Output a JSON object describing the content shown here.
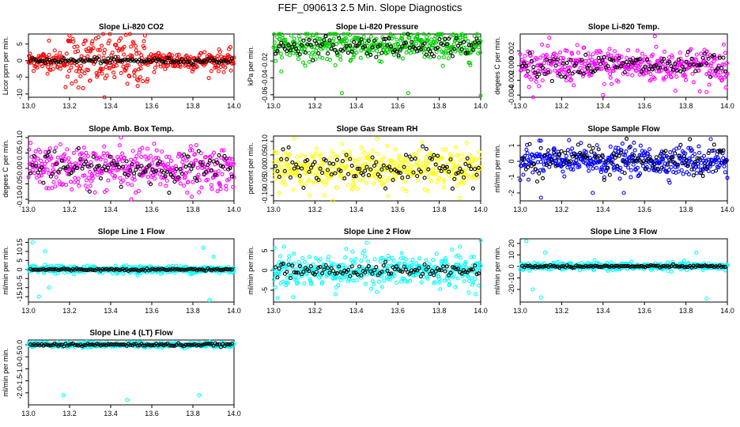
{
  "figure_title": "FEF_090613  2.5 Min. Slope Diagnostics",
  "chart_data": [
    {
      "type": "scatter",
      "title": "Slope Li-820 CO2",
      "ylabel": "Licor ppm per min.",
      "color": "#ff0000",
      "xlim": [
        13.0,
        14.0
      ],
      "ylim": [
        -11,
        8
      ],
      "yticks": [
        -10,
        -5,
        0,
        5
      ],
      "ytick_labels": [
        "-10",
        "-5",
        "0",
        "5"
      ],
      "xticks": [
        13.0,
        13.2,
        13.4,
        13.6,
        13.8,
        14.0
      ],
      "xtick_labels": [
        "13.0",
        "13.2",
        "13.4",
        "13.6",
        "13.8",
        "14.0"
      ],
      "color_spread": 2.5,
      "black_spread": 0.4,
      "center": 0.0,
      "outliers": [
        [
          13.1,
          6
        ],
        [
          13.2,
          7.5
        ],
        [
          13.37,
          -11
        ],
        [
          13.3,
          -6
        ]
      ]
    },
    {
      "type": "scatter",
      "title": "Slope Li-820 Pressure",
      "ylabel": "kPa per min.",
      "color": "#00cc00",
      "xlim": [
        13.0,
        14.0
      ],
      "ylim": [
        -0.063,
        0.012
      ],
      "yticks": [
        -0.06,
        -0.04,
        -0.02
      ],
      "ytick_labels": [
        "-0.06",
        "-0.04",
        "-0.02"
      ],
      "xticks": [
        13.0,
        13.2,
        13.4,
        13.6,
        13.8,
        14.0
      ],
      "xtick_labels": [
        "13.0",
        "13.2",
        "13.4",
        "13.6",
        "13.8",
        "14.0"
      ],
      "color_spread": 0.009,
      "black_spread": 0.006,
      "center": -0.002,
      "outliers": [
        [
          13.33,
          -0.058
        ],
        [
          13.65,
          -0.058
        ],
        [
          14.0,
          -0.061
        ]
      ]
    },
    {
      "type": "scatter",
      "title": "Slope Li-820 Temp.",
      "ylabel": "degees C per min.",
      "color": "#ff00ff",
      "xlim": [
        13.0,
        14.0
      ],
      "ylim": [
        -0.0043,
        0.0043
      ],
      "yticks": [
        -0.004,
        -0.002,
        0.0,
        0.002
      ],
      "ytick_labels": [
        "-0.004",
        "-0.002",
        "0.000",
        "0.002"
      ],
      "xticks": [
        13.0,
        13.2,
        13.4,
        13.6,
        13.8,
        14.0
      ],
      "xtick_labels": [
        "13.0",
        "13.2",
        "13.4",
        "13.6",
        "13.8",
        "14.0"
      ],
      "color_spread": 0.0012,
      "black_spread": 0.0008,
      "center": 0.0,
      "outliers": [
        [
          13.65,
          0.004
        ],
        [
          13.4,
          -0.004
        ],
        [
          13.9,
          -0.0036
        ]
      ]
    },
    {
      "type": "scatter",
      "title": "Slope Amb. Box Temp.",
      "ylabel": "degees C per min.",
      "color": "#ff00ff",
      "xlim": [
        13.0,
        14.0
      ],
      "ylim": [
        -0.105,
        0.105
      ],
      "yticks": [
        -0.1,
        -0.05,
        0.0,
        0.05,
        0.1
      ],
      "ytick_labels": [
        "-0.10",
        "-0.05",
        "0.00",
        "0.05",
        "0.10"
      ],
      "xticks": [
        13.0,
        13.2,
        13.4,
        13.6,
        13.8,
        14.0
      ],
      "xtick_labels": [
        "13.0",
        "13.2",
        "13.4",
        "13.6",
        "13.8",
        "14.0"
      ],
      "color_spread": 0.035,
      "black_spread": 0.025,
      "center": 0.0,
      "outliers": [
        [
          13.45,
          0.1
        ],
        [
          13.5,
          -0.1
        ]
      ]
    },
    {
      "type": "scatter",
      "title": "Slope Gas Stream RH",
      "ylabel": "percent per min.",
      "color": "#ffff00",
      "xlim": [
        13.0,
        14.0
      ],
      "ylim": [
        -0.12,
        0.12
      ],
      "yticks": [
        -0.1,
        -0.05,
        0.0,
        0.05,
        0.1
      ],
      "ytick_labels": [
        "-0.10",
        "-0.05",
        "0.00",
        "0.05",
        "0.10"
      ],
      "xticks": [
        13.0,
        13.2,
        13.4,
        13.6,
        13.8,
        14.0
      ],
      "xtick_labels": [
        "13.0",
        "13.2",
        "13.4",
        "13.6",
        "13.8",
        "14.0"
      ],
      "color_spread": 0.035,
      "black_spread": 0.03,
      "center": 0.0,
      "outliers": [
        [
          13.1,
          0.11
        ],
        [
          13.5,
          0.11
        ],
        [
          13.9,
          -0.11
        ]
      ]
    },
    {
      "type": "scatter",
      "title": "Slope Sample Flow",
      "ylabel": "ml/min per min.",
      "color": "#0000ff",
      "xlim": [
        13.0,
        14.0
      ],
      "ylim": [
        -2.5,
        1.6
      ],
      "yticks": [
        -2,
        -1,
        0,
        1
      ],
      "ytick_labels": [
        "-2",
        "-1",
        "0",
        "1"
      ],
      "xticks": [
        13.0,
        13.2,
        13.4,
        13.6,
        13.8,
        14.0
      ],
      "xtick_labels": [
        "13.0",
        "13.2",
        "13.4",
        "13.6",
        "13.8",
        "14.0"
      ],
      "color_spread": 0.45,
      "black_spread": 0.5,
      "center": 0.0,
      "outliers": [
        [
          13.1,
          1.3
        ],
        [
          13.1,
          -2.3
        ],
        [
          13.35,
          -2.0
        ],
        [
          13.5,
          -2.0
        ],
        [
          13.92,
          1.4
        ]
      ]
    },
    {
      "type": "scatter",
      "title": "Slope Line 1 Flow",
      "ylabel": "ml/min per min.",
      "color": "#00ffff",
      "xlim": [
        13.0,
        14.0
      ],
      "ylim": [
        -18,
        17
      ],
      "yticks": [
        -15,
        -10,
        -5,
        0,
        5,
        10,
        15
      ],
      "ytick_labels": [
        "-15",
        "-10",
        "-5",
        "0",
        "5",
        "10",
        "15"
      ],
      "xticks": [
        13.0,
        13.2,
        13.4,
        13.6,
        13.8,
        14.0
      ],
      "xtick_labels": [
        "13.0",
        "13.2",
        "13.4",
        "13.6",
        "13.8",
        "14.0"
      ],
      "color_spread": 1.0,
      "black_spread": 0.3,
      "center": 0.0,
      "outliers": [
        [
          13.02,
          15
        ],
        [
          13.05,
          -15
        ],
        [
          13.08,
          10
        ],
        [
          13.1,
          -10
        ],
        [
          13.85,
          12
        ],
        [
          13.88,
          -17
        ],
        [
          13.9,
          7
        ]
      ]
    },
    {
      "type": "scatter",
      "title": "Slope Line 2 Flow",
      "ylabel": "ml/min per min.",
      "color": "#00ffff",
      "xlim": [
        13.0,
        14.0
      ],
      "ylim": [
        -8,
        8
      ],
      "yticks": [
        -5,
        0,
        5
      ],
      "ytick_labels": [
        "-5",
        "0",
        "5"
      ],
      "xticks": [
        13.0,
        13.2,
        13.4,
        13.6,
        13.8,
        14.0
      ],
      "xtick_labels": [
        "13.0",
        "13.2",
        "13.4",
        "13.6",
        "13.8",
        "14.0"
      ],
      "color_spread": 2.0,
      "black_spread": 0.8,
      "center": 0.0,
      "outliers": [
        [
          13.05,
          6
        ],
        [
          13.3,
          -6
        ],
        [
          13.45,
          7
        ],
        [
          13.9,
          6
        ],
        [
          14.0,
          7.5
        ],
        [
          13.02,
          -7
        ]
      ]
    },
    {
      "type": "scatter",
      "title": "Slope Line 3 Flow",
      "ylabel": "ml/min per min.",
      "color": "#00ffff",
      "xlim": [
        13.0,
        14.0
      ],
      "ylim": [
        -31,
        24
      ],
      "yticks": [
        -20,
        -10,
        0,
        10,
        20
      ],
      "ytick_labels": [
        "-20",
        "-10",
        "0",
        "10",
        "20"
      ],
      "xticks": [
        13.0,
        13.2,
        13.4,
        13.6,
        13.8,
        14.0
      ],
      "xtick_labels": [
        "13.0",
        "13.2",
        "13.4",
        "13.6",
        "13.8",
        "14.0"
      ],
      "color_spread": 1.5,
      "black_spread": 0.5,
      "center": 0.0,
      "outliers": [
        [
          13.03,
          22
        ],
        [
          13.06,
          -20
        ],
        [
          13.1,
          -27
        ],
        [
          13.12,
          12
        ],
        [
          13.9,
          -28
        ],
        [
          13.85,
          12
        ]
      ]
    },
    {
      "type": "scatter",
      "title": "Slope Line 4 (LT) Flow",
      "ylabel": "ml/min per min.",
      "color": "#00ffff",
      "xlim": [
        13.0,
        14.0
      ],
      "ylim": [
        -2.5,
        0.2
      ],
      "yticks": [
        -2.0,
        -1.5,
        -1.0,
        -0.5,
        0.0
      ],
      "ytick_labels": [
        "-2.0",
        "-1.5",
        "-1.0",
        "-0.5",
        "0.0"
      ],
      "xticks": [
        13.0,
        13.2,
        13.4,
        13.6,
        13.8,
        14.0
      ],
      "xtick_labels": [
        "13.0",
        "13.2",
        "13.4",
        "13.6",
        "13.8",
        "14.0"
      ],
      "color_spread": 0.05,
      "black_spread": 0.03,
      "center": 0.0,
      "outliers": [
        [
          13.17,
          -2.1
        ],
        [
          13.48,
          -2.3
        ],
        [
          13.83,
          -2.1
        ]
      ]
    }
  ]
}
